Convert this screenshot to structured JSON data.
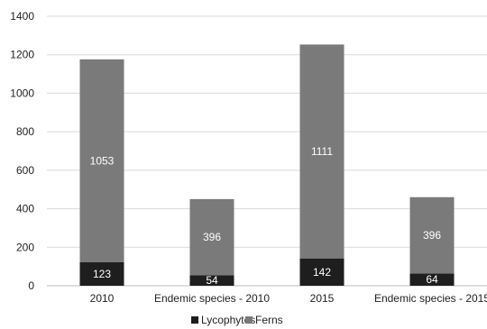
{
  "chart_data": {
    "type": "bar",
    "stacked": true,
    "categories": [
      "2010",
      "Endemic species - 2010",
      "2015",
      "Endemic species - 2015"
    ],
    "series": [
      {
        "name": "Lycophytes",
        "values": [
          123,
          54,
          142,
          64
        ],
        "color": "#1e1e1e"
      },
      {
        "name": "Ferns",
        "values": [
          1053,
          396,
          1111,
          396
        ],
        "color": "#7a7a7a"
      }
    ],
    "ylim": [
      0,
      1400
    ],
    "yticks": [
      0,
      200,
      400,
      600,
      800,
      1000,
      1200,
      1400
    ],
    "grid": true,
    "legend": "bottom",
    "xlabel": "",
    "ylabel": "",
    "title": ""
  }
}
